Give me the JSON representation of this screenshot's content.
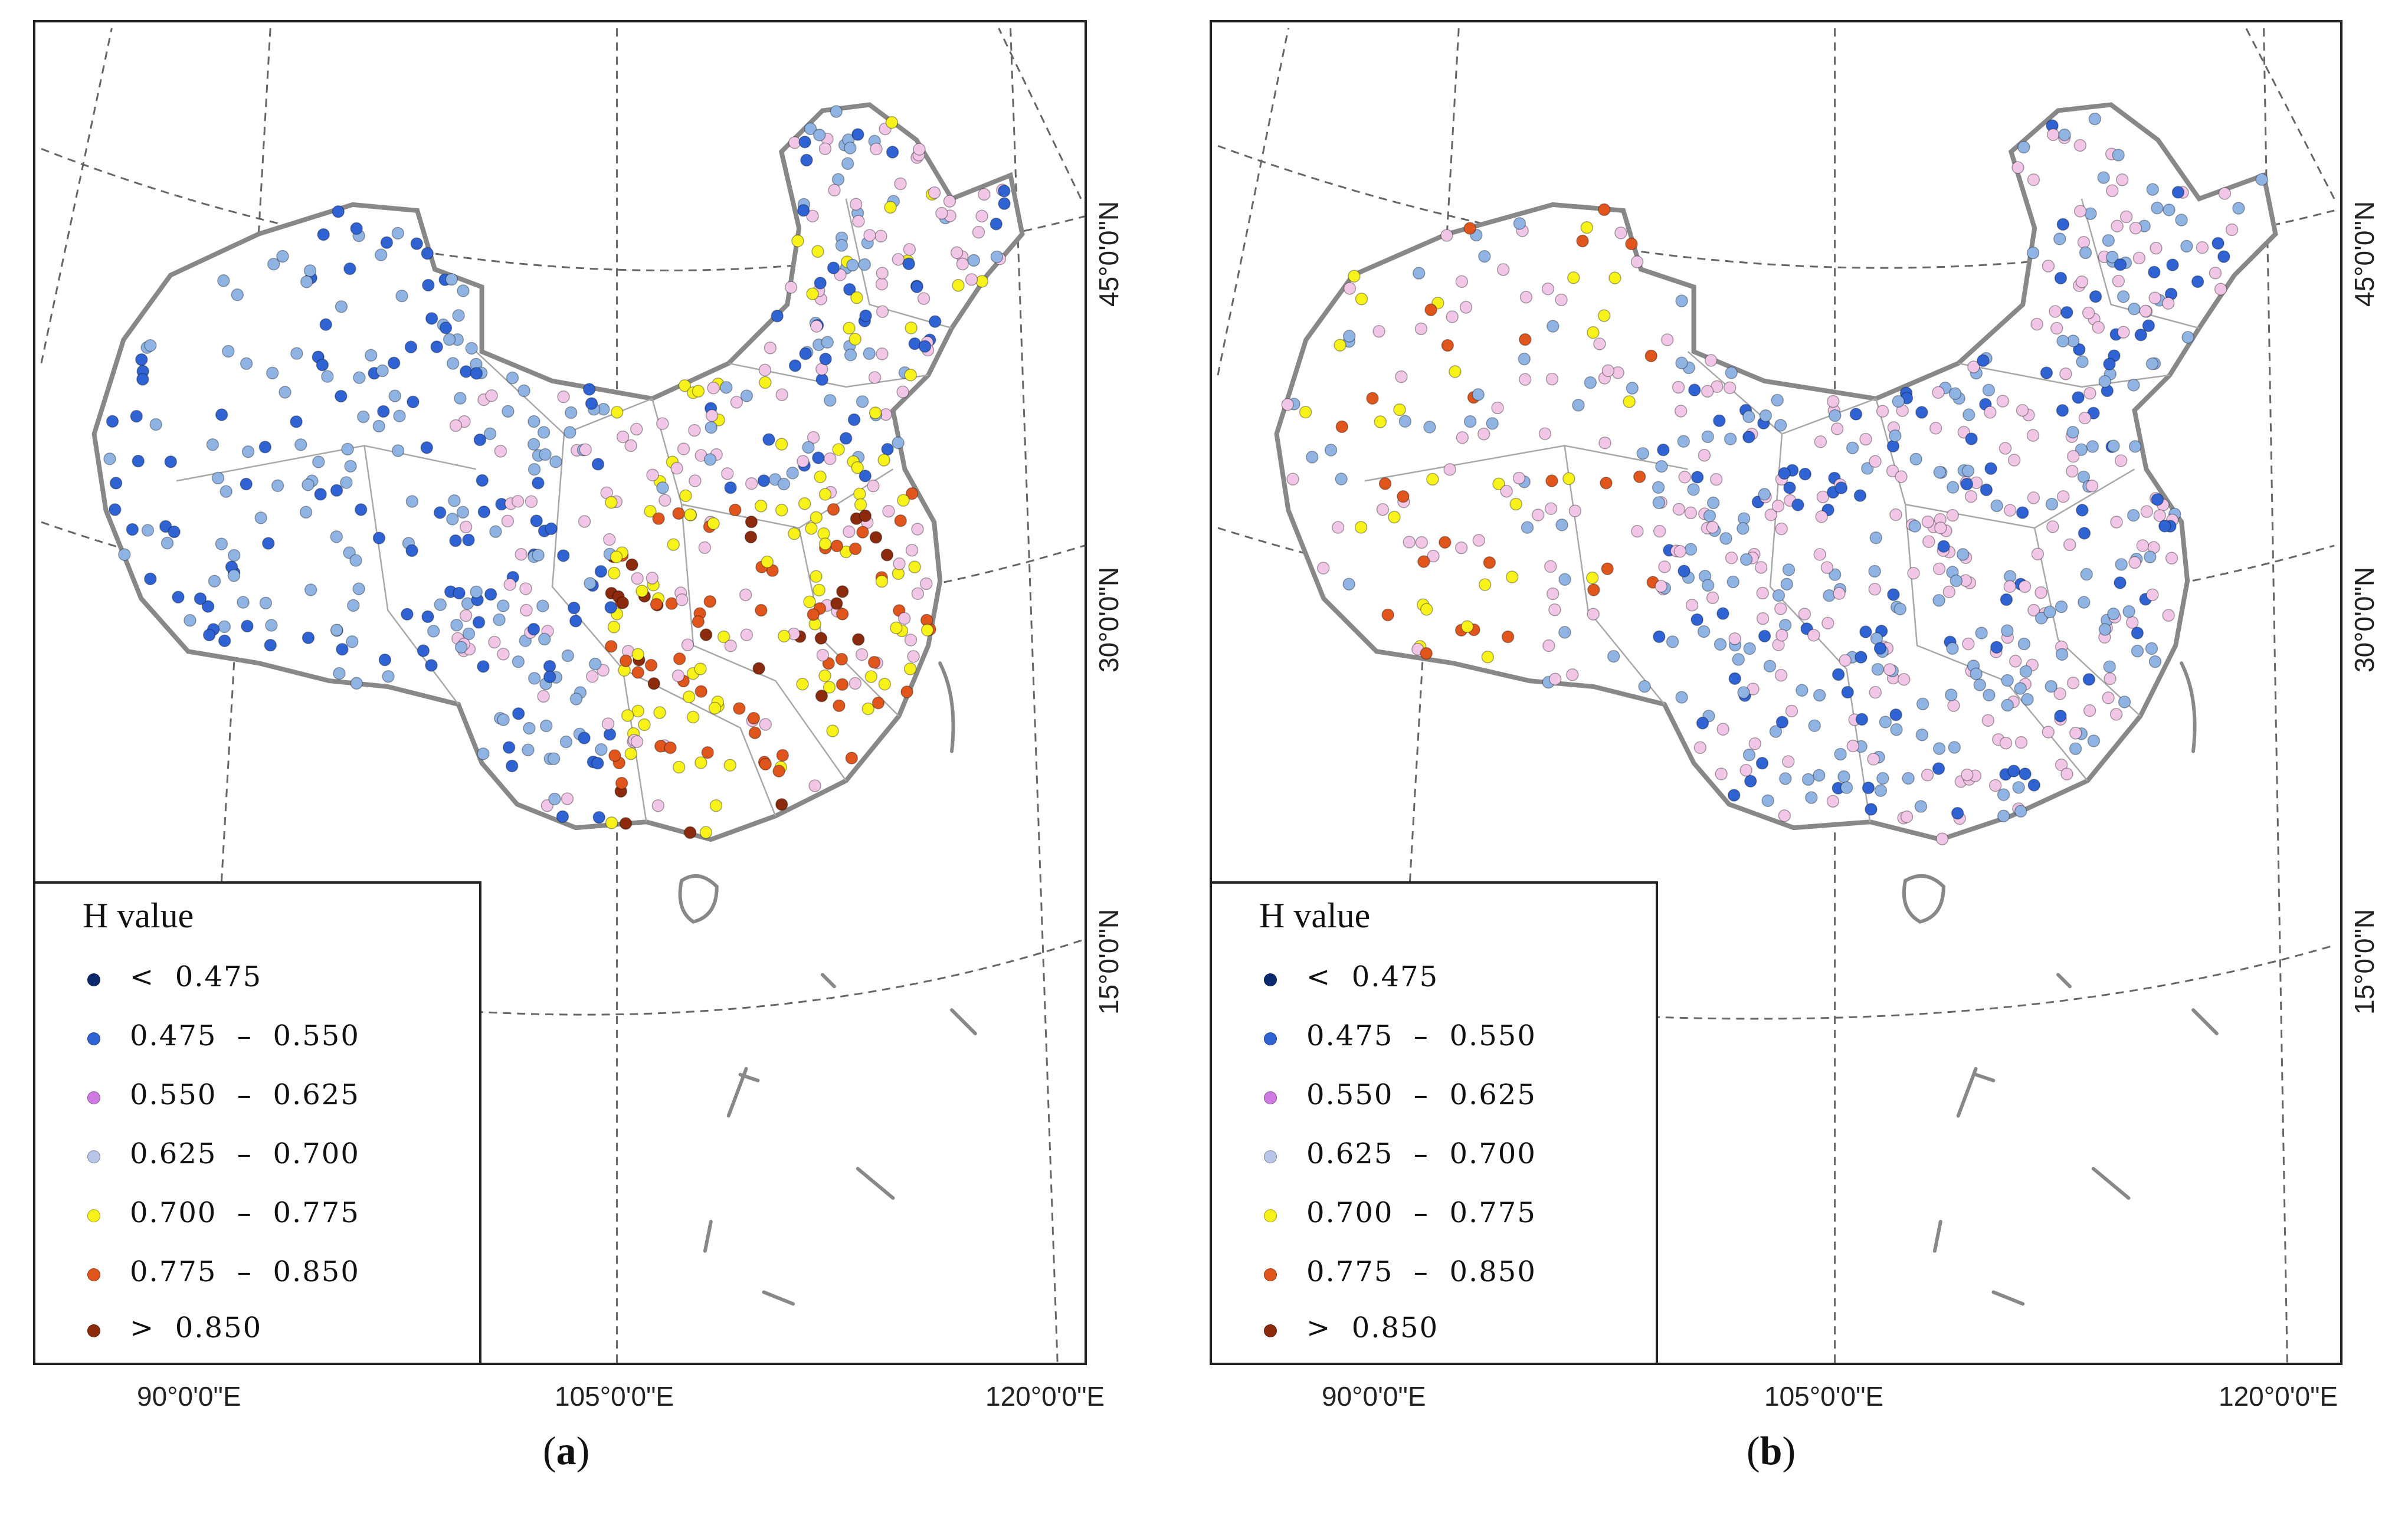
{
  "panels": [
    {
      "id": "a",
      "caption_letter": "a",
      "legend": {
        "title": "H  value",
        "items": [
          {
            "label": "<  0.475",
            "color": "#0b2a6e"
          },
          {
            "label": "0.475  –  0.550",
            "color": "#2f63d4"
          },
          {
            "label": "0.550  –  0.625",
            "color": "#cf7ae0"
          },
          {
            "label": "0.625  –  0.700",
            "color": "#b9c6ea"
          },
          {
            "label": "0.700  –  0.775",
            "color": "#f7f21a"
          },
          {
            "label": "0.775  –  0.850",
            "color": "#e0551c"
          },
          {
            "label": ">  0.850",
            "color": "#8b2a0c"
          }
        ]
      },
      "lon_labels": [
        "90°0'0\"E",
        "105°0'0\"E",
        "120°0'0\"E"
      ],
      "lat_labels": [
        "45°0'0\"N",
        "30°0'0\"N",
        "15°0'0\"N"
      ]
    },
    {
      "id": "b",
      "caption_letter": "b",
      "legend": {
        "title": "H  value",
        "items": [
          {
            "label": "<  0.475",
            "color": "#0b2a6e"
          },
          {
            "label": "0.475  –  0.550",
            "color": "#2f63d4"
          },
          {
            "label": "0.550  –  0.625",
            "color": "#cf7ae0"
          },
          {
            "label": "0.625  –  0.700",
            "color": "#b9c6ea"
          },
          {
            "label": "0.700  –  0.775",
            "color": "#f7f21a"
          },
          {
            "label": "0.775  –  0.850",
            "color": "#e0551c"
          },
          {
            "label": ">  0.850",
            "color": "#8b2a0c"
          }
        ]
      },
      "lon_labels": [
        "90°0'0\"E",
        "105°0'0\"E",
        "120°0'0\"E"
      ],
      "lat_labels": [
        "45°0'0\"N",
        "30°0'0\"N",
        "15°0'0\"N"
      ]
    }
  ],
  "colors": {
    "border": "#888888",
    "province": "#9a9a9a",
    "graticule": "#555555",
    "point_light_blue": "#8fb4e4",
    "point_pink": "#f2c6e6"
  }
}
